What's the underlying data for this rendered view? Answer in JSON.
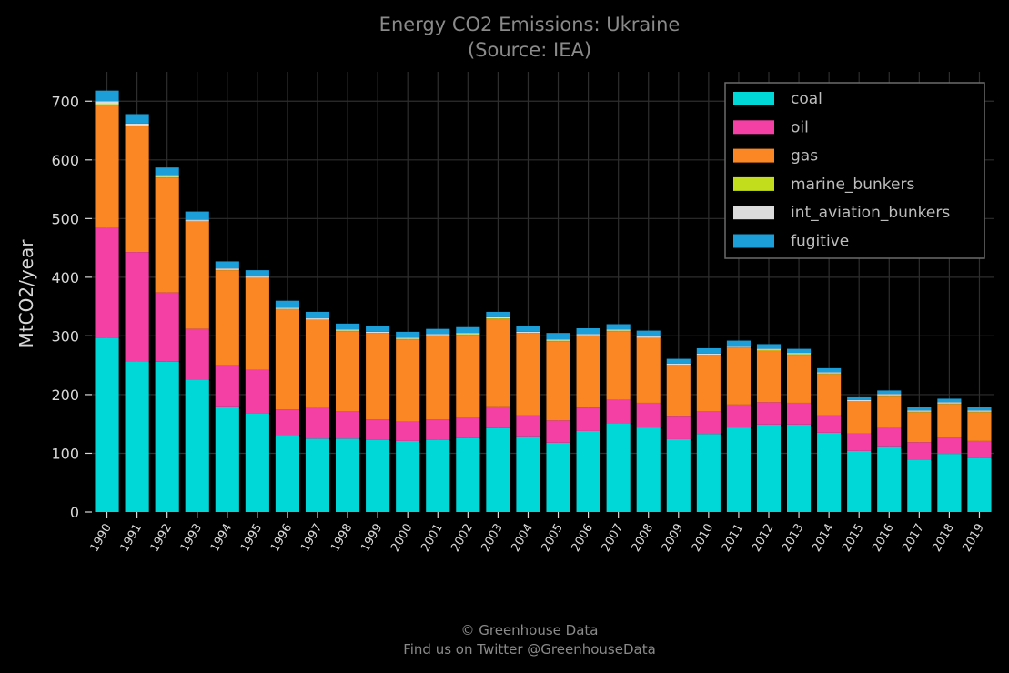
{
  "title_line1": "Energy CO2 Emissions: Ukraine",
  "title_line2": "(Source: IEA)",
  "credit_line1": "© Greenhouse Data",
  "credit_line2": "Find us on Twitter @GreenhouseData",
  "colors": {
    "background": "#000000",
    "grid": "#2e2e2e",
    "coal": "#00d8d8",
    "oil": "#f43fa5",
    "gas": "#fb8624",
    "marine_bunkers": "#c2dd1b",
    "int_aviation_bunkers": "#dcdcdc",
    "fugitive": "#1c9fd9"
  },
  "chart_data": {
    "type": "bar",
    "stacked": true,
    "title": "Energy CO2 Emissions: Ukraine\n(Source: IEA)",
    "xlabel": "",
    "ylabel": "MtCO2/year",
    "ylim": [
      0,
      750
    ],
    "yticks": [
      0,
      100,
      200,
      300,
      400,
      500,
      600,
      700
    ],
    "grid": true,
    "legend_position": "top-right",
    "categories": [
      "1990",
      "1991",
      "1992",
      "1993",
      "1994",
      "1995",
      "1996",
      "1997",
      "1998",
      "1999",
      "2000",
      "2001",
      "2002",
      "2003",
      "2004",
      "2005",
      "2006",
      "2007",
      "2008",
      "2009",
      "2010",
      "2011",
      "2012",
      "2013",
      "2014",
      "2015",
      "2016",
      "2017",
      "2018",
      "2019"
    ],
    "series": [
      {
        "name": "coal",
        "color": "#00d8d8",
        "values": [
          297,
          257,
          256,
          226,
          180,
          168,
          131,
          125,
          125,
          123,
          121,
          123,
          126,
          143,
          129,
          118,
          138,
          151,
          144,
          124,
          133,
          144,
          149,
          149,
          135,
          104,
          112,
          89,
          99,
          92
        ]
      },
      {
        "name": "oil",
        "color": "#f43fa5",
        "values": [
          187,
          186,
          118,
          86,
          70,
          74,
          44,
          52,
          47,
          35,
          33,
          35,
          36,
          37,
          36,
          38,
          40,
          40,
          42,
          40,
          39,
          39,
          38,
          37,
          30,
          30,
          31,
          30,
          28,
          29
        ]
      },
      {
        "name": "gas",
        "color": "#fb8624",
        "values": [
          210,
          214,
          196,
          183,
          162,
          157,
          170,
          150,
          136,
          146,
          140,
          142,
          140,
          149,
          139,
          135,
          122,
          117,
          110,
          86,
          95,
          97,
          88,
          82,
          70,
          54,
          55,
          51,
          57,
          49
        ]
      },
      {
        "name": "marine_bunkers",
        "color": "#c2dd1b",
        "values": [
          1,
          1,
          1,
          1,
          1,
          1,
          1,
          1,
          1,
          1,
          1,
          1,
          1,
          1,
          1,
          1,
          1,
          1,
          1,
          1,
          1,
          1,
          1,
          1,
          1,
          1,
          1,
          1,
          1,
          1
        ]
      },
      {
        "name": "int_aviation_bunkers",
        "color": "#dcdcdc",
        "values": [
          5,
          4,
          3,
          2,
          2,
          2,
          2,
          2,
          2,
          2,
          2,
          2,
          2,
          2,
          2,
          2,
          2,
          2,
          2,
          2,
          2,
          2,
          2,
          2,
          2,
          2,
          2,
          2,
          2,
          2
        ]
      },
      {
        "name": "fugitive",
        "color": "#1c9fd9",
        "values": [
          18,
          16,
          13,
          14,
          12,
          10,
          12,
          11,
          10,
          10,
          10,
          9,
          10,
          9,
          10,
          11,
          10,
          9,
          10,
          8,
          9,
          9,
          8,
          7,
          7,
          6,
          6,
          6,
          6,
          6
        ]
      }
    ]
  }
}
